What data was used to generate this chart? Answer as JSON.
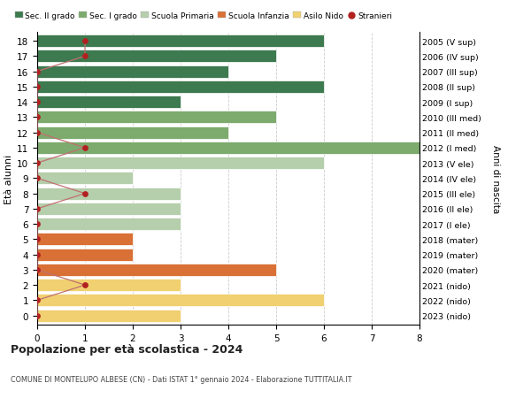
{
  "ages": [
    18,
    17,
    16,
    15,
    14,
    13,
    12,
    11,
    10,
    9,
    8,
    7,
    6,
    5,
    4,
    3,
    2,
    1,
    0
  ],
  "years": [
    "2005 (V sup)",
    "2006 (IV sup)",
    "2007 (III sup)",
    "2008 (II sup)",
    "2009 (I sup)",
    "2010 (III med)",
    "2011 (II med)",
    "2012 (I med)",
    "2013 (V ele)",
    "2014 (IV ele)",
    "2015 (III ele)",
    "2016 (II ele)",
    "2017 (I ele)",
    "2018 (mater)",
    "2019 (mater)",
    "2020 (mater)",
    "2021 (nido)",
    "2022 (nido)",
    "2023 (nido)"
  ],
  "bar_values": [
    6,
    5,
    4,
    6,
    3,
    5,
    4,
    8,
    6,
    2,
    3,
    3,
    3,
    2,
    2,
    5,
    3,
    6,
    3
  ],
  "bar_colors": [
    "#3d7a4f",
    "#3d7a4f",
    "#3d7a4f",
    "#3d7a4f",
    "#3d7a4f",
    "#7daa6d",
    "#7daa6d",
    "#7daa6d",
    "#b5ceab",
    "#b5ceab",
    "#b5ceab",
    "#b5ceab",
    "#b5ceab",
    "#d97035",
    "#d97035",
    "#d97035",
    "#f0d070",
    "#f0d070",
    "#f0d070"
  ],
  "stranieri_values": [
    1,
    1,
    0,
    0,
    0,
    0,
    0,
    1,
    0,
    0,
    1,
    0,
    0,
    0,
    0,
    0,
    1,
    0,
    0
  ],
  "stranieri_color": "#b22020",
  "stranieri_line_color": "#c07070",
  "legend_labels": [
    "Sec. II grado",
    "Sec. I grado",
    "Scuola Primaria",
    "Scuola Infanzia",
    "Asilo Nido",
    "Stranieri"
  ],
  "legend_colors": [
    "#3d7a4f",
    "#7daa6d",
    "#b5ceab",
    "#d97035",
    "#f0d070",
    "#b22020"
  ],
  "title": "Popolazione per età scolastica - 2024",
  "subtitle": "COMUNE DI MONTELUPO ALBESE (CN) - Dati ISTAT 1° gennaio 2024 - Elaborazione TUTTITALIA.IT",
  "ylabel_left": "Età alunni",
  "ylabel_right": "Anni di nascita",
  "xlim": [
    0,
    8
  ],
  "bar_height": 0.82,
  "bg_color": "#ffffff",
  "grid_color": "#cccccc"
}
